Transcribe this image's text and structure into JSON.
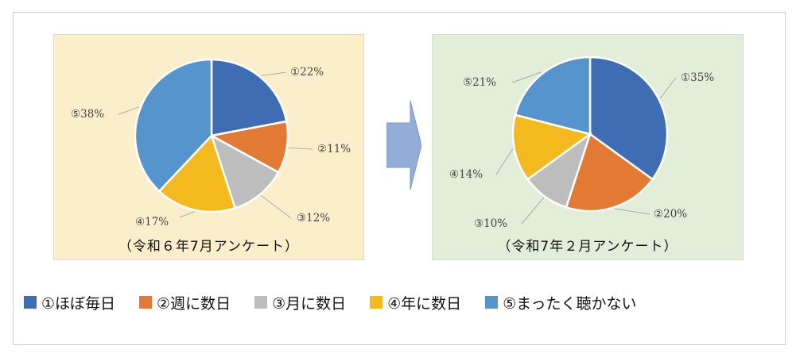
{
  "colors": {
    "s1": "#3f6db4",
    "s2": "#e37a33",
    "s3": "#bdbdbd",
    "s4": "#f4b91c",
    "s5": "#5594cc"
  },
  "legend": [
    {
      "label": "①ほぼ毎日",
      "color": "#3f6db4"
    },
    {
      "label": "②週に数日",
      "color": "#e37a33"
    },
    {
      "label": "③月に数日",
      "color": "#bdbdbd"
    },
    {
      "label": "④年に数日",
      "color": "#f4b91c"
    },
    {
      "label": "⑤まったく聴かない",
      "color": "#5594cc"
    }
  ],
  "arrow_icon": "right-arrow-icon",
  "chart_data": [
    {
      "type": "pie",
      "title": "（令和６年7月アンケート）",
      "categories": [
        "①ほぼ毎日",
        "②週に数日",
        "③月に数日",
        "④年に数日",
        "⑤まったく聴かない"
      ],
      "values": [
        22,
        11,
        12,
        17,
        38
      ],
      "labels": [
        "①22%",
        "②11%",
        "③12%",
        "④17%",
        "⑤38%"
      ]
    },
    {
      "type": "pie",
      "title": "（令和7年２月アンケート）",
      "categories": [
        "①ほぼ毎日",
        "②週に数日",
        "③月に数日",
        "④年に数日",
        "⑤まったく聴かない"
      ],
      "values": [
        35,
        20,
        10,
        14,
        21
      ],
      "labels": [
        "①35%",
        "②20%",
        "③10%",
        "④14%",
        "⑤21%"
      ]
    }
  ]
}
